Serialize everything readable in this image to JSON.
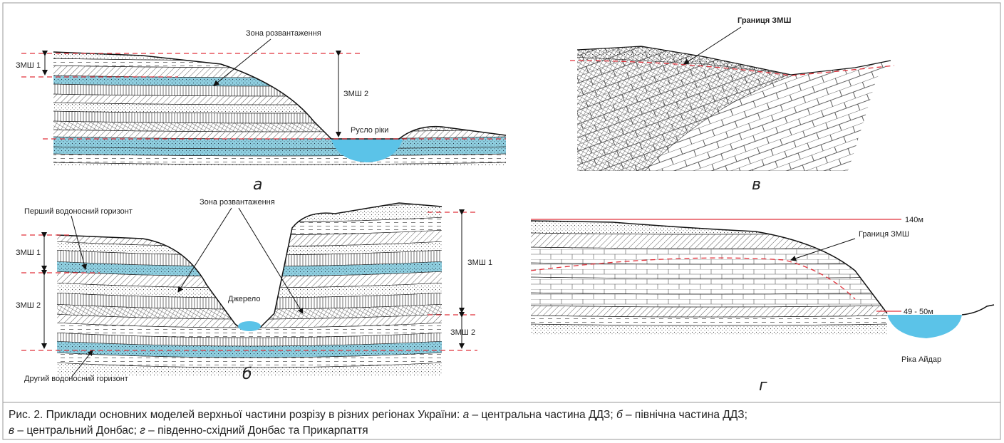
{
  "panel_a": {
    "letter": "а",
    "discharge_zone": "Зона розвантаження",
    "zmsh1": "ЗМШ 1",
    "zmsh2": "ЗМШ 2",
    "river_bed": "Русло ріки"
  },
  "panel_b": {
    "letter": "б",
    "first_aquifer": "Перший водоносний горизонт",
    "discharge_zone": "Зона розвантаження",
    "zmsh1_left": "ЗМШ 1",
    "zmsh2_left": "ЗМШ 2",
    "spring": "Джерело",
    "zmsh1_right": "ЗМШ 1",
    "zmsh2_right": "ЗМШ 2",
    "second_aquifer": "Другий водоносний горизонт"
  },
  "panel_v": {
    "letter": "в",
    "zmsh_boundary": "Границя ЗМШ"
  },
  "panel_g": {
    "letter": "г",
    "level_top": "140м",
    "zmsh_boundary": "Границя ЗМШ",
    "level_river": "49 - 50м",
    "river": "Ріка Айдар"
  },
  "caption": {
    "lead": "Рис. 2. Приклади основних моделей верхньої частини розрізу в різних регіонах України: ",
    "items": [
      {
        "letter": "а",
        "text": " – центральна частина ДДЗ; "
      },
      {
        "letter": "б",
        "text": " – північна частина ДДЗ;"
      },
      {
        "letter": "в",
        "text": " – центральний Донбас; "
      },
      {
        "letter": "г",
        "text": " – південно-східний Донбас та Прикарпаття"
      }
    ]
  }
}
